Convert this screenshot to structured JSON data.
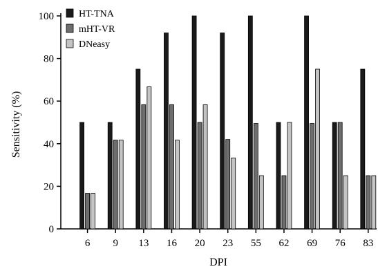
{
  "chart_data": {
    "type": "bar",
    "title": "",
    "xlabel": "DPI",
    "ylabel": "Sensitivity (%)",
    "ylim": [
      0,
      100
    ],
    "yticks": [
      0,
      20,
      40,
      60,
      80,
      100
    ],
    "categories": [
      "6",
      "9",
      "13",
      "16",
      "20",
      "23",
      "55",
      "62",
      "69",
      "76",
      "83"
    ],
    "series": [
      {
        "name": "HT-TNA",
        "color": "#1a1a1a",
        "values": [
          50,
          50,
          75,
          92,
          100,
          92,
          100,
          50,
          100,
          50,
          75
        ]
      },
      {
        "name": "mHT-VR",
        "color": "#6e6e6e",
        "values": [
          16.7,
          41.7,
          58.3,
          58.3,
          50,
          42,
          49.5,
          25,
          49.5,
          50,
          25
        ]
      },
      {
        "name": "DNeasy",
        "color": "#c4c4c4",
        "values": [
          16.7,
          41.7,
          66.7,
          41.7,
          58.3,
          33.3,
          25,
          50,
          75,
          25,
          25
        ]
      }
    ],
    "legend": "top-left",
    "grid": false
  }
}
